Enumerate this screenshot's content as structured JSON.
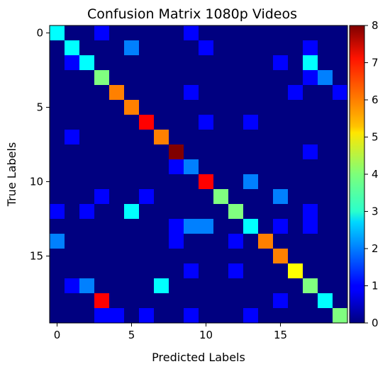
{
  "chart_data": {
    "type": "heatmap",
    "title": "Confusion Matrix 1080p Videos",
    "xlabel": "Predicted Labels",
    "ylabel": "True Labels",
    "x_ticks": [
      0,
      5,
      10,
      15
    ],
    "y_ticks": [
      0,
      5,
      10,
      15
    ],
    "colorbar_ticks": [
      0,
      1,
      2,
      3,
      4,
      5,
      6,
      7,
      8
    ],
    "vmin": 0,
    "vmax": 8,
    "colormap": "jet",
    "matrix": [
      [
        3,
        0,
        0,
        1,
        0,
        0,
        0,
        0,
        0,
        1,
        0,
        0,
        0,
        0,
        0,
        0,
        0,
        0,
        0,
        0
      ],
      [
        0,
        3,
        0,
        0,
        0,
        2,
        0,
        0,
        0,
        0,
        1,
        0,
        0,
        0,
        0,
        0,
        0,
        1,
        0,
        0
      ],
      [
        0,
        1,
        3,
        0,
        0,
        0,
        0,
        0,
        0,
        0,
        0,
        0,
        0,
        0,
        0,
        1,
        0,
        3,
        0,
        0
      ],
      [
        0,
        0,
        0,
        4,
        0,
        0,
        0,
        0,
        0,
        0,
        0,
        0,
        0,
        0,
        0,
        0,
        0,
        1,
        2,
        0
      ],
      [
        0,
        0,
        0,
        0,
        6,
        0,
        0,
        0,
        0,
        1,
        0,
        0,
        0,
        0,
        0,
        0,
        1,
        0,
        0,
        1
      ],
      [
        0,
        0,
        0,
        0,
        0,
        6,
        0,
        0,
        0,
        0,
        0,
        0,
        0,
        0,
        0,
        0,
        0,
        0,
        0,
        0
      ],
      [
        0,
        0,
        0,
        0,
        0,
        0,
        7,
        0,
        0,
        0,
        1,
        0,
        0,
        1,
        0,
        0,
        0,
        0,
        0,
        0
      ],
      [
        0,
        1,
        0,
        0,
        0,
        0,
        0,
        6,
        0,
        0,
        0,
        0,
        0,
        0,
        0,
        0,
        0,
        0,
        0,
        0
      ],
      [
        0,
        0,
        0,
        0,
        0,
        0,
        0,
        0,
        8,
        0,
        0,
        0,
        0,
        0,
        0,
        0,
        0,
        1,
        0,
        0
      ],
      [
        0,
        0,
        0,
        0,
        0,
        0,
        0,
        0,
        1,
        2,
        0,
        0,
        0,
        0,
        0,
        0,
        0,
        0,
        0,
        0
      ],
      [
        0,
        0,
        0,
        0,
        0,
        0,
        0,
        0,
        0,
        0,
        7,
        0,
        0,
        2,
        0,
        0,
        0,
        0,
        0,
        0
      ],
      [
        0,
        0,
        0,
        1,
        0,
        0,
        1,
        0,
        0,
        0,
        0,
        4,
        0,
        0,
        0,
        2,
        0,
        0,
        0,
        0
      ],
      [
        1,
        0,
        1,
        0,
        0,
        3,
        0,
        0,
        0,
        0,
        0,
        0,
        4,
        0,
        0,
        0,
        0,
        1,
        0,
        0
      ],
      [
        0,
        0,
        0,
        0,
        0,
        0,
        0,
        0,
        1,
        2,
        2,
        0,
        0,
        3,
        0,
        1,
        0,
        1,
        0,
        0
      ],
      [
        2,
        0,
        0,
        0,
        0,
        0,
        0,
        0,
        1,
        0,
        0,
        0,
        1,
        0,
        6,
        0,
        0,
        0,
        0,
        0
      ],
      [
        0,
        0,
        0,
        0,
        0,
        0,
        0,
        0,
        0,
        0,
        0,
        0,
        0,
        0,
        0,
        6,
        0,
        0,
        0,
        0
      ],
      [
        0,
        0,
        0,
        0,
        0,
        0,
        0,
        0,
        0,
        1,
        0,
        0,
        1,
        0,
        0,
        0,
        5,
        0,
        0,
        0
      ],
      [
        0,
        1,
        2,
        0,
        0,
        0,
        0,
        3,
        0,
        0,
        0,
        0,
        0,
        0,
        0,
        0,
        0,
        4,
        0,
        0
      ],
      [
        0,
        0,
        0,
        7,
        0,
        0,
        0,
        0,
        0,
        0,
        0,
        0,
        0,
        0,
        0,
        1,
        0,
        0,
        3,
        0
      ],
      [
        0,
        0,
        0,
        1,
        1,
        0,
        1,
        0,
        0,
        1,
        0,
        0,
        0,
        1,
        0,
        0,
        0,
        0,
        0,
        4
      ]
    ]
  }
}
